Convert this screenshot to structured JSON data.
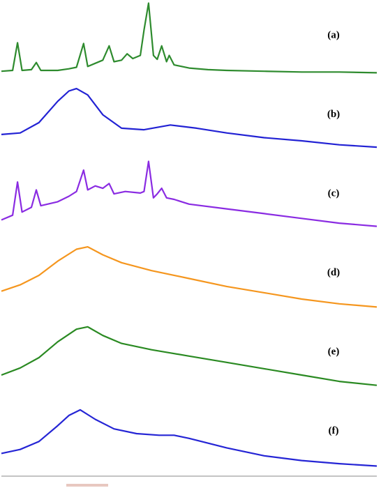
{
  "chart_data": [
    {
      "type": "line",
      "title": "(a)",
      "color": "#2e8b2e",
      "xlim": [
        0,
        100
      ],
      "ylim": [
        0,
        100
      ],
      "x": [
        0,
        3,
        4.3,
        5.5,
        8,
        9.3,
        10.5,
        15,
        18,
        20,
        21.9,
        23,
        25,
        27,
        28.7,
        30,
        32,
        33.5,
        35,
        37,
        38,
        39.2,
        40.5,
        41.5,
        42.7,
        44,
        44.7,
        46,
        50,
        55,
        60,
        70,
        80,
        90,
        100
      ],
      "values": [
        10,
        11,
        46,
        11,
        12,
        21,
        11,
        11,
        13,
        15,
        45,
        16,
        20,
        24,
        42,
        22,
        24,
        32,
        26,
        30,
        62,
        96,
        30,
        25,
        42,
        22,
        30,
        18,
        14,
        12,
        11,
        10,
        9,
        9,
        8
      ]
    },
    {
      "type": "line",
      "title": "(b)",
      "color": "#2222d4",
      "xlim": [
        0,
        100
      ],
      "ylim": [
        0,
        100
      ],
      "x": [
        0,
        5,
        10,
        15,
        18,
        20,
        23,
        27,
        32,
        38,
        45,
        52,
        60,
        70,
        80,
        90,
        100
      ],
      "values": [
        30,
        32,
        45,
        72,
        85,
        88,
        80,
        55,
        38,
        36,
        42,
        38,
        32,
        26,
        22,
        17,
        14
      ]
    },
    {
      "type": "line",
      "title": "(c)",
      "color": "#8a2be2",
      "xlim": [
        0,
        100
      ],
      "ylim": [
        0,
        100
      ],
      "x": [
        0,
        3,
        4.3,
        5.5,
        8,
        9.3,
        10.5,
        15,
        18,
        20,
        21.9,
        23,
        25,
        27,
        28.7,
        30,
        33,
        37,
        38,
        39.2,
        40.5,
        41.5,
        42.7,
        44,
        46,
        50,
        60,
        70,
        80,
        90,
        100
      ],
      "values": [
        22,
        28,
        70,
        32,
        38,
        60,
        40,
        45,
        52,
        58,
        85,
        60,
        65,
        62,
        68,
        55,
        58,
        56,
        58,
        96,
        50,
        55,
        62,
        50,
        48,
        42,
        36,
        30,
        24,
        18,
        14
      ]
    },
    {
      "type": "line",
      "title": "(d)",
      "color": "#f5961e",
      "xlim": [
        0,
        100
      ],
      "ylim": [
        0,
        100
      ],
      "x": [
        0,
        5,
        10,
        15,
        20,
        23,
        27,
        32,
        40,
        50,
        60,
        70,
        80,
        90,
        100
      ],
      "values": [
        32,
        40,
        52,
        70,
        85,
        88,
        78,
        68,
        58,
        48,
        38,
        30,
        22,
        16,
        12
      ]
    },
    {
      "type": "line",
      "title": "(e)",
      "color": "#2a8a22",
      "xlim": [
        0,
        100
      ],
      "ylim": [
        0,
        100
      ],
      "x": [
        0,
        5,
        10,
        15,
        20,
        23,
        27,
        32,
        40,
        50,
        60,
        70,
        80,
        90,
        100
      ],
      "values": [
        26,
        35,
        48,
        68,
        84,
        87,
        76,
        66,
        58,
        50,
        42,
        34,
        26,
        18,
        13
      ]
    },
    {
      "type": "line",
      "title": "(f)",
      "color": "#2525d5",
      "xlim": [
        0,
        100
      ],
      "ylim": [
        0,
        100
      ],
      "x": [
        0,
        5,
        10,
        15,
        18,
        21,
        25,
        30,
        36,
        42,
        46,
        50,
        60,
        70,
        80,
        90,
        100
      ],
      "values": [
        27,
        32,
        42,
        62,
        75,
        82,
        70,
        58,
        52,
        50,
        50,
        46,
        34,
        24,
        18,
        14,
        11
      ]
    }
  ]
}
